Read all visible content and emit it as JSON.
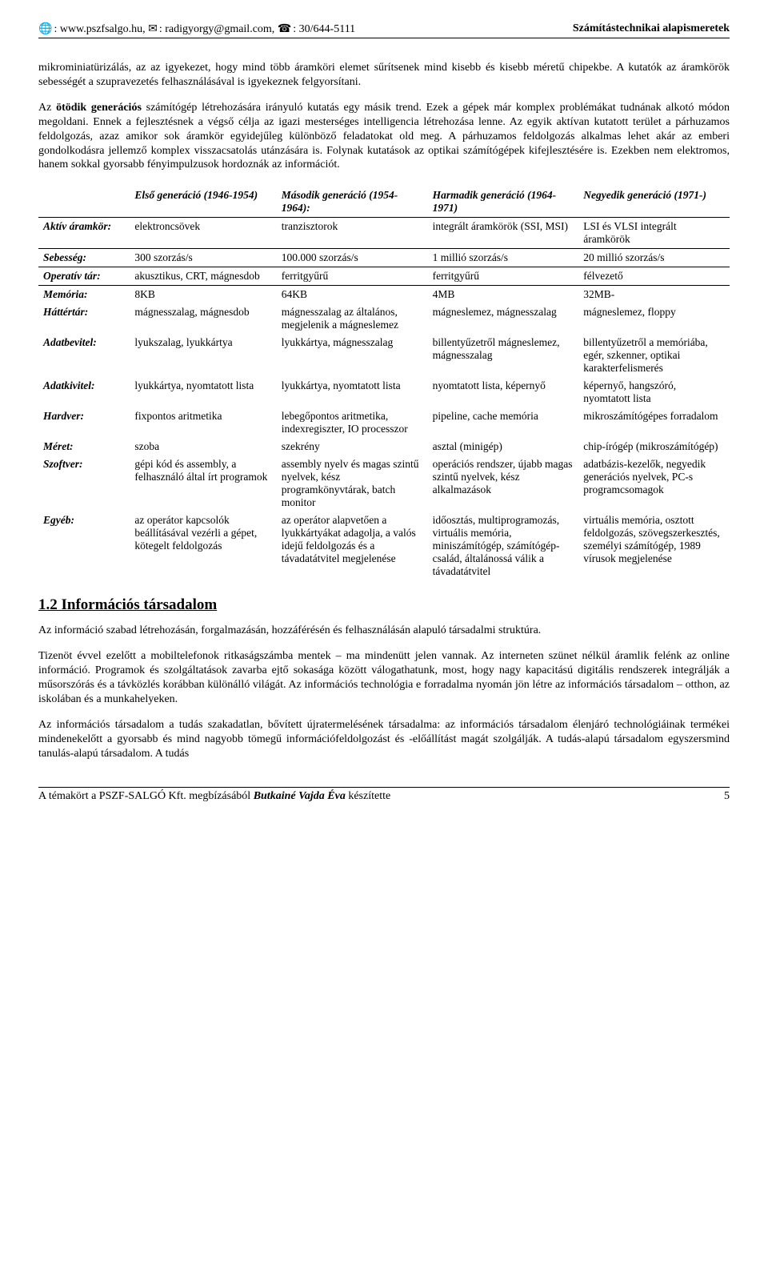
{
  "header": {
    "web_icon": "🌐",
    "web": ": www.pszfsalgo.hu, ",
    "mail_icon": "✉",
    "mail": ": radigyorgy@gmail.com, ",
    "phone_icon": "☎",
    "phone": ": 30/644-5111",
    "title": "Számítástechnikai alapismeretek"
  },
  "para1": "mikrominiatürizálás, az az igyekezet, hogy mind több áramköri elemet sűrítsenek mind kisebb és kisebb méretű chipekbe. A kutatók az áramkörök sebességét a szupravezetés felhasználásával is igyekeznek felgyorsítani.",
  "para2_a": "Az ",
  "para2_b": "ötödik generációs",
  "para2_c": " számítógép létrehozására irányuló kutatás egy másik trend. Ezek a gépek már komplex problémákat tudnának alkotó módon megoldani. Ennek a fejlesztésnek a végső célja az igazi mesterséges intelligencia létrehozása lenne. Az egyik aktívan kutatott terület a párhuzamos feldolgozás, azaz amikor sok áramkör egyidejűleg különböző feladatokat old meg. A párhuzamos feldolgozás alkalmas lehet akár az emberi gondolkodásra jellemző komplex visszacsatolás utánzására is. Folynak kutatások az optikai számítógépek kifejlesztésére is. Ezekben nem elektromos, hanem sokkal gyorsabb fényimpulzusok hordoznák az információt.",
  "table": {
    "col_headers": [
      "",
      "Első generáció (1946-1954)",
      "Második generáció (1954-1964):",
      "Harmadik generáció (1964-1971)",
      "Negyedik generáció (1971-)"
    ],
    "rows": [
      {
        "h": "Aktív áramkör:",
        "c": [
          "elektroncsövek",
          "tranzisztorok",
          "integrált áramkörök (SSI, MSI)",
          "LSI és VLSI integrált áramkörök"
        ]
      },
      {
        "h": "Sebesség:",
        "c": [
          "300 szorzás/s",
          "100.000 szorzás/s",
          "1 millió szorzás/s",
          "20 millió szorzás/s"
        ]
      },
      {
        "h": "Operatív tár:",
        "c": [
          "akusztikus, CRT, mágnesdob",
          "ferritgyűrű",
          "ferritgyűrű",
          "félvezető"
        ]
      },
      {
        "h": "Memória:",
        "c": [
          "8KB",
          "64KB",
          "4MB",
          "32MB-"
        ]
      },
      {
        "h": "Háttértár:",
        "c": [
          "mágnesszalag, mágnesdob",
          "mágnesszalag az általános, megjelenik a mágneslemez",
          "mágneslemez, mágnesszalag",
          "mágneslemez, floppy"
        ]
      },
      {
        "h": "Adatbevitel:",
        "c": [
          "lyukszalag, lyukkártya",
          "lyukkártya, mágnesszalag",
          "billentyűzetről mágneslemez, mágnesszalag",
          "billentyűzetről a memóriába, egér, szkenner, optikai karakterfelismerés"
        ]
      },
      {
        "h": "Adatkivitel:",
        "c": [
          "lyukkártya, nyomtatott lista",
          "lyukkártya, nyomtatott lista",
          "nyomtatott lista, képernyő",
          "képernyő, hangszóró, nyomtatott lista"
        ]
      },
      {
        "h": "Hardver:",
        "c": [
          "fixpontos aritmetika",
          "lebegőpontos aritmetika, indexregiszter, IO processzor",
          "pipeline, cache memória",
          "mikroszámítógépes forradalom"
        ]
      },
      {
        "h": "Méret:",
        "c": [
          "szoba",
          "szekrény",
          "asztal (minigép)",
          "chip-írógép (mikroszámítógép)"
        ]
      },
      {
        "h": "Szoftver:",
        "c": [
          "gépi kód és assembly, a felhasználó által írt programok",
          "assembly nyelv és magas szintű nyelvek, kész programkönyvtárak, batch monitor",
          "operációs rendszer, újabb magas szintű nyelvek, kész alkalmazások",
          "adatbázis-kezelők, negyedik generációs nyelvek, PC-s programcsomagok"
        ]
      },
      {
        "h": "Egyéb:",
        "c": [
          "az operátor kapcsolók beállításával vezérli a gépet, kötegelt feldolgozás",
          "az operátor alapvetően a lyukkártyákat adagolja, a valós idejű feldolgozás és a távadatátvitel megjelenése",
          "időosztás, multiprogramozás, virtuális memória, miniszámítógép, számítógép-család, általánossá válik a távadatátvitel",
          "virtuális memória, osztott feldolgozás, szövegszerkesztés, személyi számítógép, 1989 vírusok megjelenése"
        ]
      }
    ]
  },
  "section_title": "1.2 Információs társadalom",
  "para3": "Az információ szabad létrehozásán, forgalmazásán, hozzáférésén és felhasználásán alapuló társadalmi struktúra.",
  "para4": "Tizenöt évvel ezelőtt a mobiltelefonok ritkaságszámba mentek – ma mindenütt jelen vannak. Az interneten szünet nélkül áramlik felénk az online információ. Programok és szolgáltatások zavarba ejtő sokasága között válogathatunk, most, hogy nagy kapacitású digitális rendszerek integrálják a műsorszórás és a távközlés korábban különálló világát. Az információs technológia e forradalma nyomán jön létre az információs társadalom – otthon, az iskolában és a munkahelyeken.",
  "para5": "Az információs társadalom a tudás szakadatlan, bővített újratermelésének társadalma: az információs társadalom élenjáró technológiáinak termékei mindenekelőtt a gyorsabb és mind nagyobb tömegű információfeldolgozást és -előállítást magát szolgálják. A tudás-alapú társadalom egyszersmind tanulás-alapú társadalom. A tudás",
  "footer": {
    "left_a": "A témakört a PSZF-SALGÓ Kft. megbízásából ",
    "left_b": "Butkainé Vajda Éva",
    "left_c": " készítette",
    "page": "5"
  }
}
